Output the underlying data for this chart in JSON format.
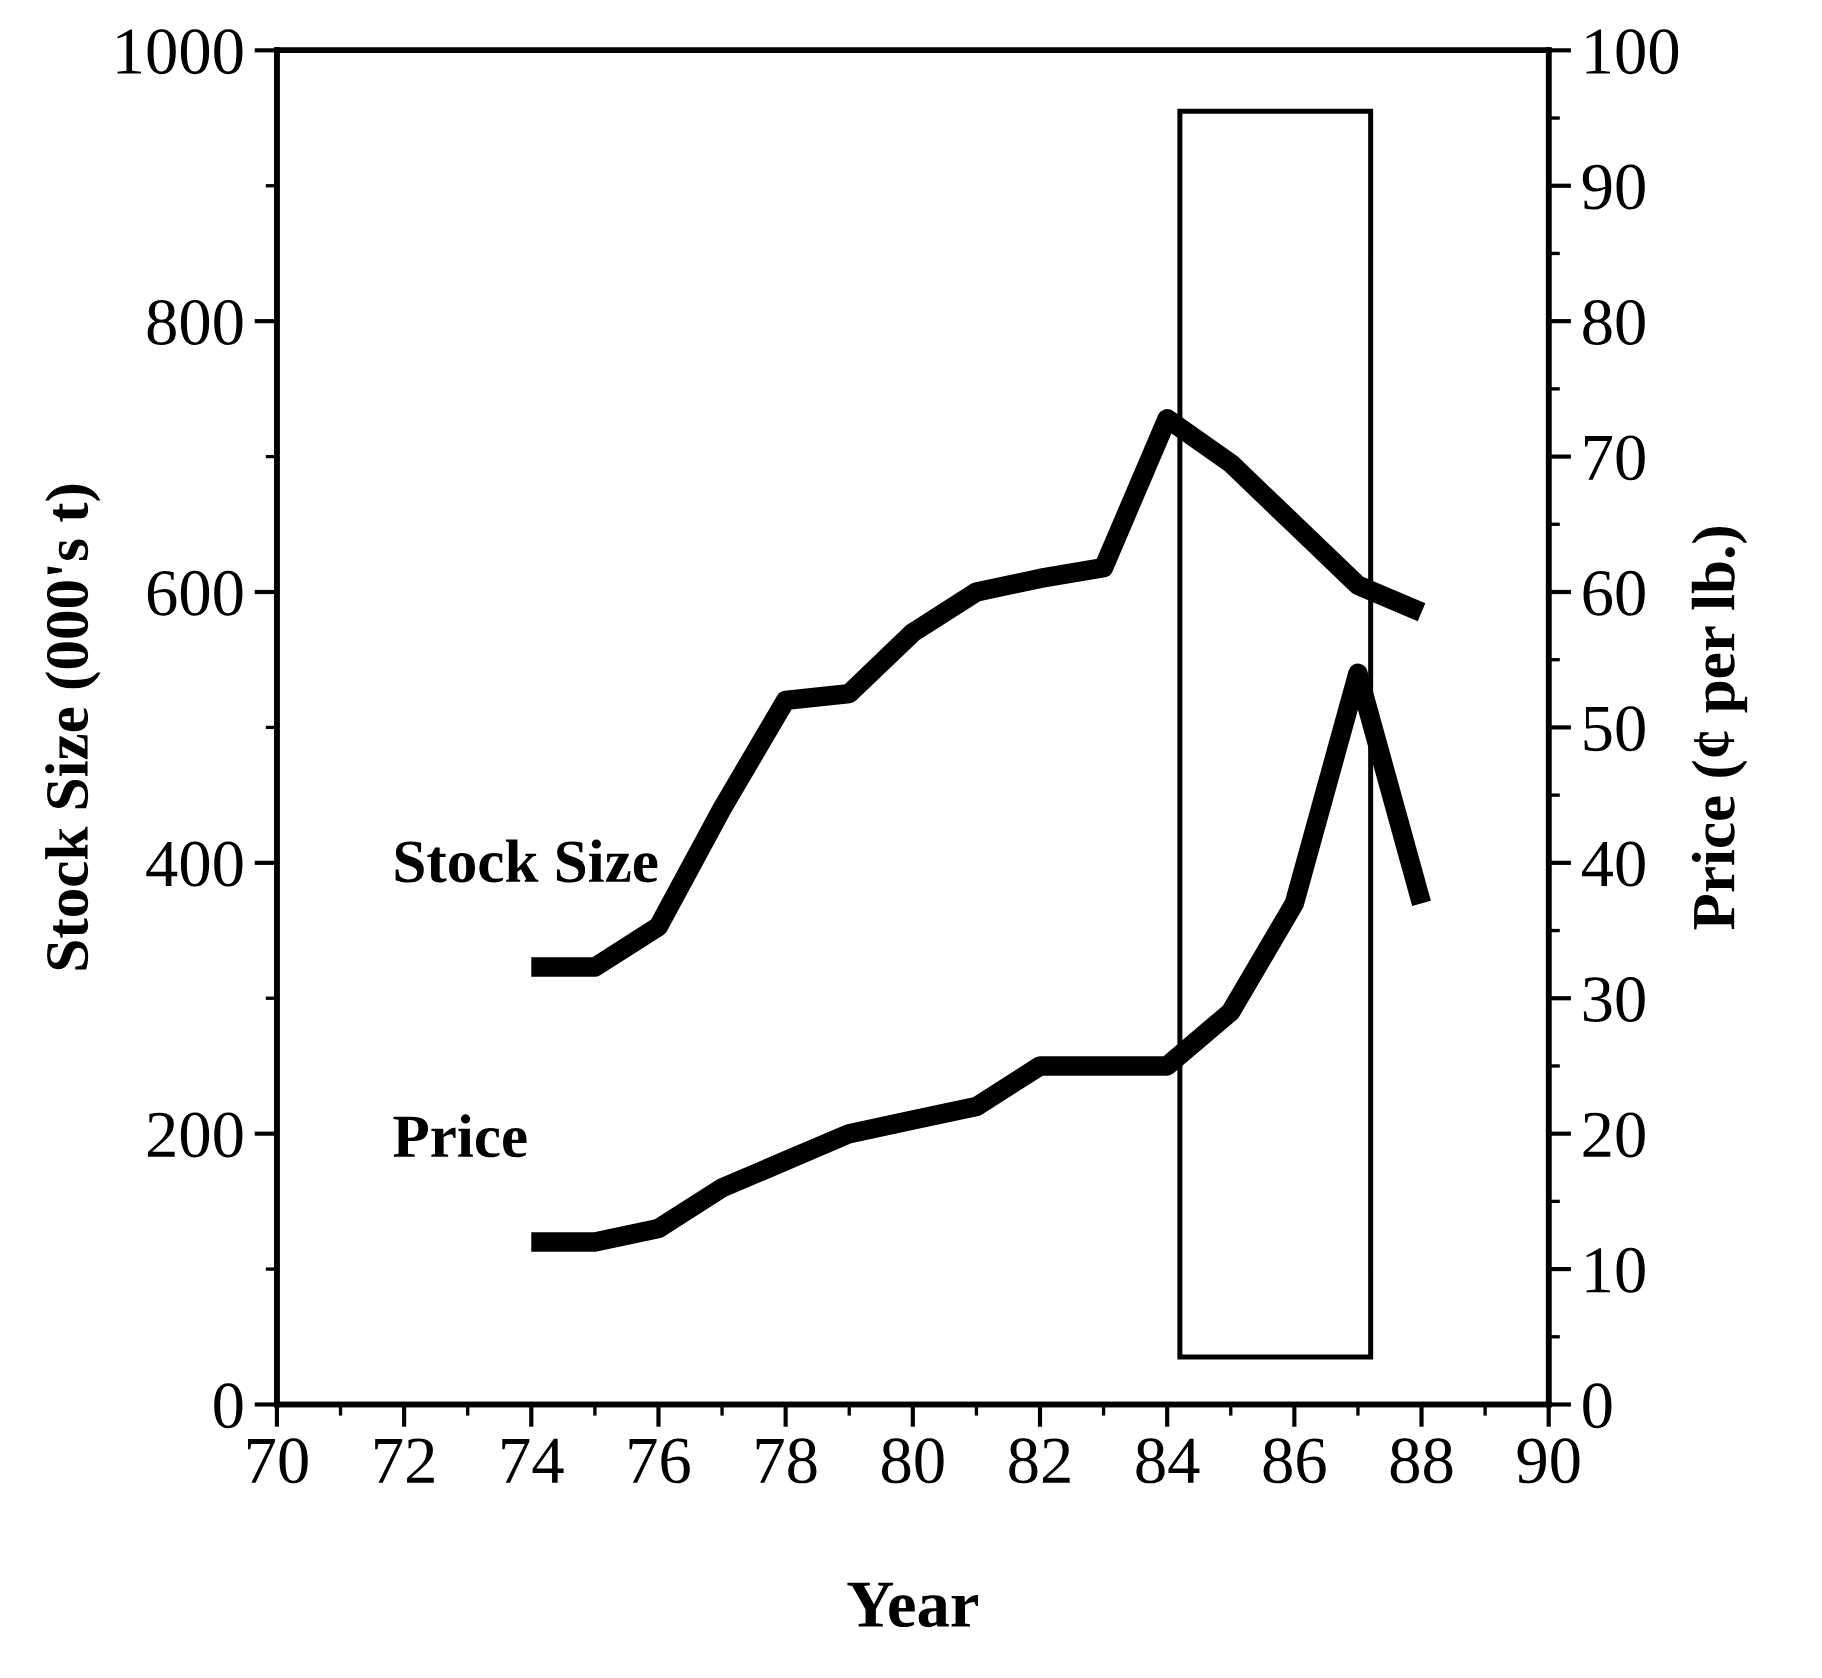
{
  "chart_data": {
    "type": "line",
    "xlabel": "Year",
    "ylabel": "Stock Size (000's t)",
    "y2label": "Price (¢ per lb.)",
    "x": [
      74,
      75,
      76,
      77,
      78,
      79,
      80,
      81,
      82,
      83,
      84,
      85,
      86,
      87,
      88
    ],
    "series": [
      {
        "name": "Stock Size",
        "color": "#000000",
        "values": [
          323,
          323,
          353,
          440,
          520,
          525,
          570,
          600,
          610,
          618,
          728,
          695,
          650,
          605,
          585
        ]
      },
      {
        "name": "Price",
        "color": "#000000",
        "axis": "y2",
        "values": [
          12,
          12,
          13,
          16,
          18,
          20,
          21,
          22,
          25,
          25,
          25,
          29,
          37,
          54,
          37
        ]
      }
    ],
    "xlim": [
      70,
      90
    ],
    "xticks": [
      70,
      72,
      74,
      76,
      78,
      80,
      82,
      84,
      86,
      88,
      90
    ],
    "ylim": [
      0,
      1000
    ],
    "yticks": [
      0,
      200,
      400,
      600,
      800,
      1000
    ],
    "y2lim": [
      0,
      100
    ],
    "y2ticks": [
      0,
      10,
      20,
      30,
      40,
      50,
      60,
      70,
      80,
      90,
      100
    ],
    "bands": [
      {
        "axis": "x",
        "from": 84.2,
        "to": 87.2
      }
    ],
    "grid": false,
    "legend": false,
    "marker": "none",
    "line_style": "solid"
  }
}
